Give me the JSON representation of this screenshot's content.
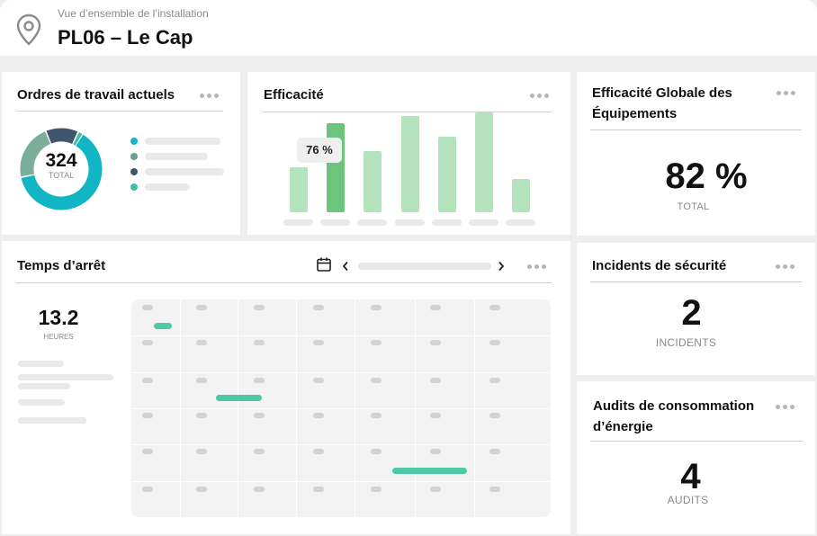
{
  "header": {
    "subtitle": "Vue d’ensemble de l’installation",
    "title": "PL06 – Le Cap",
    "icon": "location-pin-icon"
  },
  "work_orders": {
    "title": "Ordres de travail actuels",
    "total_value": "324",
    "total_label": "TOTAL",
    "segments": [
      {
        "fraction": 0.63,
        "color": "#12b5c4"
      },
      {
        "fraction": 0.22,
        "color": "#7aae9a"
      },
      {
        "fraction": 0.13,
        "color": "#40556e"
      },
      {
        "fraction": 0.02,
        "color": "#3fbfa8"
      }
    ],
    "legend_colors": [
      "#12b5c4",
      "#6a9e8a",
      "#40556e",
      "#3fbfa8"
    ]
  },
  "efficiency": {
    "title": "Efficacité",
    "tooltip": "76 %",
    "highlight_index": 1,
    "colors": {
      "bar": "#b5e3bd",
      "highlight": "#6cc47d"
    },
    "chart_data": {
      "type": "bar",
      "values": [
        50,
        99,
        68,
        107,
        84,
        111,
        37
      ],
      "ylim": [
        0,
        115
      ]
    }
  },
  "oee": {
    "title": "Efficacité Globale des Équipements",
    "value": "82 %",
    "caption": "TOTAL"
  },
  "downtime": {
    "title": "Temps d’arrêt",
    "value": "13.2",
    "caption": "HEURES",
    "events_color": "#4dc9a6"
  },
  "safety": {
    "title": "Incidents de sécurité",
    "value": "2",
    "caption": "INCIDENTS"
  },
  "energy": {
    "title": "Audits de consommation d’énergie",
    "value": "4",
    "caption": "AUDITS"
  }
}
